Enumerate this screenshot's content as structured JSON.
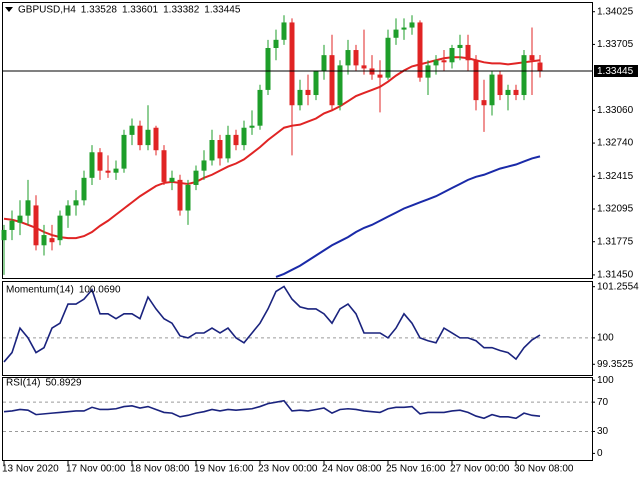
{
  "chart_data": [
    {
      "type": "candlestick",
      "title": "GBPUSD,H4",
      "categories": [
        "13 Nov 2020",
        null,
        null,
        null,
        null,
        null,
        null,
        null,
        "17 Nov 00:00",
        null,
        null,
        null,
        null,
        null,
        null,
        null,
        "18 Nov 08:00",
        null,
        null,
        null,
        null,
        null,
        null,
        null,
        "19 Nov 16:00",
        null,
        null,
        null,
        null,
        null,
        null,
        null,
        "23 Nov 00:00",
        null,
        null,
        null,
        null,
        null,
        null,
        null,
        "24 Nov 08:00",
        null,
        null,
        null,
        null,
        null,
        null,
        null,
        "25 Nov 16:00",
        null,
        null,
        null,
        null,
        null,
        null,
        null,
        "27 Nov 00:00",
        null,
        null,
        null,
        null,
        null,
        null,
        null,
        "30 Nov 08:00",
        null,
        null,
        null
      ],
      "open": [
        1.3179,
        1.3189,
        1.3196,
        1.3203,
        1.3213,
        1.3174,
        1.3181,
        1.3179,
        1.3203,
        1.3213,
        1.3218,
        1.324,
        1.3265,
        1.3247,
        1.3245,
        1.3249,
        1.3282,
        1.3291,
        1.3272,
        1.3289,
        1.3267,
        1.3236,
        1.3238,
        1.3208,
        1.3233,
        1.3247,
        1.3257,
        1.3277,
        1.3259,
        1.3282,
        1.3272,
        1.3289,
        1.3291,
        1.3326,
        1.3367,
        1.3375,
        1.3392,
        1.3311,
        1.3326,
        1.3321,
        1.3345,
        1.336,
        1.3311,
        1.335,
        1.3365,
        1.335,
        1.3347,
        1.3341,
        1.3338,
        1.3377,
        1.3385,
        1.3387,
        1.3392,
        1.3338,
        1.335,
        1.3355,
        1.3353,
        1.3367,
        1.337,
        1.3355,
        1.3316,
        1.3311,
        1.3341,
        1.3321,
        1.3326,
        1.3321,
        1.336,
        1.33528
      ],
      "high": [
        1.3194,
        1.3208,
        1.3218,
        1.3238,
        1.3223,
        1.3194,
        1.3194,
        1.3208,
        1.3218,
        1.3228,
        1.3247,
        1.3272,
        1.3269,
        1.3262,
        1.3257,
        1.3287,
        1.3298,
        1.3296,
        1.3311,
        1.3291,
        1.3272,
        1.3247,
        1.3243,
        1.3238,
        1.3252,
        1.3267,
        1.3287,
        1.3282,
        1.3291,
        1.3287,
        1.3296,
        1.3306,
        1.3331,
        1.3375,
        1.3385,
        1.3399,
        1.3396,
        1.3336,
        1.3341,
        1.3345,
        1.337,
        1.338,
        1.3355,
        1.3375,
        1.337,
        1.3385,
        1.336,
        1.3355,
        1.3385,
        1.3396,
        1.3396,
        1.3399,
        1.3394,
        1.3355,
        1.336,
        1.3365,
        1.337,
        1.338,
        1.338,
        1.336,
        1.3336,
        1.3345,
        1.3345,
        1.3331,
        1.3331,
        1.3365,
        1.3387,
        1.33601
      ],
      "low": [
        1.3145,
        1.3179,
        1.3184,
        1.3194,
        1.3169,
        1.3164,
        1.3169,
        1.3174,
        1.3191,
        1.3203,
        1.3213,
        1.3233,
        1.3238,
        1.324,
        1.3238,
        1.3245,
        1.3272,
        1.3267,
        1.3267,
        1.3262,
        1.3233,
        1.3228,
        1.3203,
        1.3194,
        1.3228,
        1.3238,
        1.3252,
        1.3252,
        1.3255,
        1.3267,
        1.3267,
        1.3282,
        1.3287,
        1.3321,
        1.3355,
        1.337,
        1.3262,
        1.3306,
        1.3311,
        1.3316,
        1.3336,
        1.3306,
        1.3306,
        1.3341,
        1.3345,
        1.3341,
        1.3336,
        1.3304,
        1.3336,
        1.337,
        1.3375,
        1.338,
        1.3334,
        1.3321,
        1.3341,
        1.3345,
        1.3347,
        1.3355,
        1.3345,
        1.3306,
        1.3285,
        1.3301,
        1.3316,
        1.3306,
        1.3316,
        1.3316,
        1.3321,
        1.33382
      ],
      "close": [
        1.3189,
        1.3198,
        1.3203,
        1.3218,
        1.3174,
        1.3184,
        1.3177,
        1.3203,
        1.3213,
        1.3218,
        1.324,
        1.3265,
        1.3247,
        1.3245,
        1.3249,
        1.3282,
        1.3291,
        1.3272,
        1.3287,
        1.3267,
        1.3236,
        1.324,
        1.3208,
        1.3233,
        1.3247,
        1.3257,
        1.3277,
        1.3259,
        1.3282,
        1.3272,
        1.3289,
        1.3291,
        1.3326,
        1.3367,
        1.3375,
        1.3392,
        1.3311,
        1.3326,
        1.3321,
        1.3345,
        1.336,
        1.3311,
        1.335,
        1.3365,
        1.335,
        1.3347,
        1.3341,
        1.3338,
        1.3377,
        1.3385,
        1.3387,
        1.3392,
        1.3338,
        1.335,
        1.3355,
        1.3353,
        1.3367,
        1.337,
        1.3355,
        1.3316,
        1.3311,
        1.3341,
        1.3321,
        1.3326,
        1.3321,
        1.336,
        1.3355,
        1.33445
      ],
      "up_color": "#1e9e2a",
      "down_color": "#e02424",
      "overlays": [
        {
          "type": "line",
          "color": "#e02424",
          "values": [
            1.32,
            1.3199,
            1.3197,
            1.3194,
            1.3191,
            1.3187,
            1.3184,
            1.3182,
            1.3181,
            1.3181,
            1.3183,
            1.3187,
            1.3193,
            1.3198,
            1.3204,
            1.321,
            1.3216,
            1.3222,
            1.3227,
            1.3232,
            1.3235,
            1.3236,
            1.3235,
            1.3234,
            1.3236,
            1.324,
            1.3243,
            1.3247,
            1.3251,
            1.3254,
            1.3258,
            1.3264,
            1.327,
            1.3277,
            1.3283,
            1.3289,
            1.3291,
            1.3292,
            1.3295,
            1.3298,
            1.3303,
            1.3306,
            1.331,
            1.3315,
            1.332,
            1.3323,
            1.3326,
            1.3329,
            1.3334,
            1.334,
            1.3345,
            1.3349,
            1.3351,
            1.3353,
            1.3355,
            1.3357,
            1.3358,
            1.3358,
            1.3357,
            1.3355,
            1.3353,
            1.3352,
            1.3352,
            1.3351,
            1.3352,
            1.3353,
            1.3354,
            1.3355
          ]
        },
        {
          "type": "line",
          "color": "#1a2aa8",
          "values": [
            null,
            null,
            null,
            null,
            null,
            null,
            null,
            null,
            null,
            null,
            null,
            null,
            null,
            null,
            null,
            null,
            null,
            null,
            null,
            null,
            null,
            null,
            null,
            null,
            null,
            null,
            null,
            null,
            null,
            null,
            null,
            null,
            null,
            null,
            1.3143,
            1.3146,
            1.315,
            1.3154,
            1.3159,
            1.3164,
            1.3169,
            1.3174,
            1.3178,
            1.3182,
            1.3187,
            1.3191,
            1.3194,
            1.3198,
            1.3202,
            1.3206,
            1.321,
            1.3213,
            1.3216,
            1.3219,
            1.3222,
            1.3226,
            1.323,
            1.3234,
            1.3238,
            1.3241,
            1.3243,
            1.3246,
            1.3249,
            1.3251,
            1.3253,
            1.3256,
            1.3259,
            1.3261
          ]
        }
      ],
      "price_line": true,
      "ylim": [
        1.3142,
        1.3412
      ],
      "yticks": [
        1.34025,
        1.33705,
        {
          "value": 1.3306,
          "label": "1.33060"
        },
        {
          "value": 1.3274,
          "label": "1.32740"
        },
        1.32415,
        1.32095,
        1.31775,
        {
          "value": 1.3145,
          "label": "1.31450"
        }
      ]
    },
    {
      "type": "line",
      "title": "Momentum(14)",
      "color": "#1a237e",
      "values": [
        99.41,
        99.64,
        100.24,
        100.0,
        99.64,
        99.76,
        100.24,
        100.36,
        100.83,
        100.83,
        100.95,
        101.18,
        100.59,
        100.59,
        100.47,
        100.59,
        100.59,
        100.47,
        101.0,
        100.71,
        100.47,
        100.36,
        100.05,
        100.0,
        100.12,
        100.12,
        100.24,
        100.12,
        100.24,
        100.0,
        99.88,
        100.12,
        100.36,
        100.71,
        101.14,
        101.26,
        100.95,
        100.76,
        100.71,
        100.71,
        100.59,
        100.36,
        100.71,
        100.83,
        100.59,
        100.12,
        100.12,
        100.12,
        100.0,
        100.24,
        100.59,
        100.36,
        100.0,
        99.93,
        99.88,
        100.24,
        100.12,
        100.0,
        100.0,
        99.93,
        99.76,
        99.76,
        99.69,
        99.64,
        99.48,
        99.76,
        99.95,
        100.069
      ],
      "value_labels": [
        null,
        null,
        null,
        null,
        null,
        null,
        null,
        null,
        null,
        null,
        null,
        null,
        null,
        null,
        null,
        null,
        null,
        null,
        null,
        null,
        null,
        null,
        null,
        null,
        null,
        null,
        null,
        null,
        null,
        null,
        null,
        null,
        null,
        null,
        null,
        null,
        null,
        null,
        null,
        null,
        null,
        null,
        null,
        null,
        null,
        null,
        null,
        null,
        null,
        null,
        null,
        null,
        null,
        null,
        null,
        null,
        null,
        null,
        null,
        null,
        null,
        null,
        null,
        null,
        null,
        null,
        null,
        "100.0690"
      ],
      "levels": [
        100
      ],
      "ylim": [
        99.09,
        101.37
      ],
      "yticks": [
        101.2554,
        100,
        99.3525
      ]
    },
    {
      "type": "line",
      "title": "RSI(14)",
      "color": "#1a237e",
      "values": [
        57,
        58,
        60,
        59,
        53,
        54,
        55,
        56,
        57,
        58,
        58,
        63,
        60,
        60,
        61,
        64,
        65,
        62,
        64,
        60,
        56,
        55,
        50,
        52,
        55,
        57,
        60,
        58,
        60,
        59,
        60,
        61,
        64,
        68,
        70,
        72,
        58,
        59,
        58,
        60,
        62,
        55,
        60,
        61,
        60,
        58,
        57,
        56,
        61,
        63,
        63,
        64,
        54,
        56,
        56,
        56,
        58,
        59,
        56,
        51,
        48,
        53,
        50,
        50,
        48,
        55,
        52,
        50.8929
      ],
      "levels": [
        70,
        30
      ],
      "ylim": [
        -9,
        103
      ],
      "yticks": [
        100,
        70,
        30,
        0
      ]
    }
  ]
}
